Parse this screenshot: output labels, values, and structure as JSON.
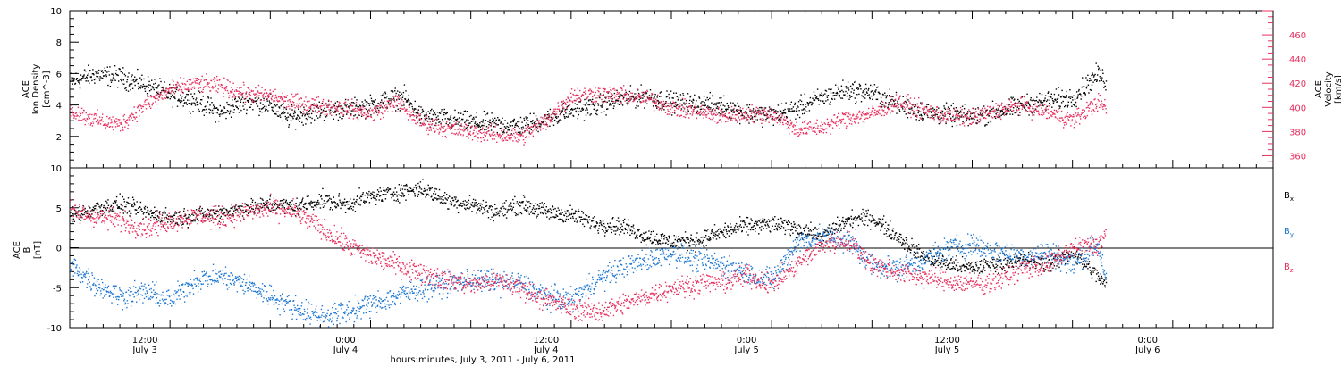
{
  "colors": {
    "black": "#000000",
    "pink": "#e8305e",
    "blue": "#1e78d2"
  },
  "chart_data": [
    {
      "type": "scatter",
      "panel": "top",
      "ylabel_left": [
        "ACE",
        "Ion Density",
        "[cm^-3]"
      ],
      "ylabel_right": [
        "ACE",
        "Velocity",
        "[km/s]"
      ],
      "ylim_left": [
        0,
        10
      ],
      "ylim_right": [
        350,
        480
      ],
      "left_tick_labels": [
        "2",
        "4",
        "6",
        "8",
        "10"
      ],
      "right_tick_labels": [
        "360",
        "380",
        "400",
        "420",
        "440",
        "460"
      ],
      "x_hours_range": [
        0,
        144
      ],
      "series": [
        {
          "name": "Ion Density",
          "color": "#000000",
          "axis": "left",
          "anchors": [
            [
              0,
              5.5
            ],
            [
              3,
              6.0
            ],
            [
              6,
              5.8
            ],
            [
              9,
              5.3
            ],
            [
              12,
              4.7
            ],
            [
              15,
              4.3
            ],
            [
              18,
              3.5
            ],
            [
              21,
              4.3
            ],
            [
              24,
              4.0
            ],
            [
              26,
              3.2
            ],
            [
              30,
              3.7
            ],
            [
              34,
              3.8
            ],
            [
              36,
              4.0
            ],
            [
              38,
              4.4
            ],
            [
              40,
              4.5
            ],
            [
              42,
              3.3
            ],
            [
              45,
              3.1
            ],
            [
              48,
              2.9
            ],
            [
              51,
              2.8
            ],
            [
              54,
              2.7
            ],
            [
              57,
              3.1
            ],
            [
              60,
              3.7
            ],
            [
              63,
              4.0
            ],
            [
              66,
              4.4
            ],
            [
              69,
              4.6
            ],
            [
              72,
              4.2
            ],
            [
              75,
              4.1
            ],
            [
              78,
              4.0
            ],
            [
              81,
              3.5
            ],
            [
              84,
              3.4
            ],
            [
              87,
              3.8
            ],
            [
              90,
              4.5
            ],
            [
              93,
              5.0
            ],
            [
              96,
              4.8
            ],
            [
              99,
              4.1
            ],
            [
              102,
              3.6
            ],
            [
              105,
              3.4
            ],
            [
              108,
              3.3
            ],
            [
              111,
              3.6
            ],
            [
              114,
              4.0
            ],
            [
              117,
              4.3
            ],
            [
              120,
              4.5
            ],
            [
              123,
              6.0
            ],
            [
              124,
              5.5
            ]
          ],
          "noise": 0.55
        },
        {
          "name": "Velocity",
          "color": "#e8305e",
          "axis": "right",
          "anchors": [
            [
              0,
              398
            ],
            [
              3,
              390
            ],
            [
              6,
              386
            ],
            [
              9,
              403
            ],
            [
              12,
              415
            ],
            [
              15,
              420
            ],
            [
              18,
              418
            ],
            [
              21,
              412
            ],
            [
              24,
              410
            ],
            [
              26,
              405
            ],
            [
              30,
              402
            ],
            [
              33,
              400
            ],
            [
              36,
              395
            ],
            [
              39,
              405
            ],
            [
              42,
              388
            ],
            [
              45,
              383
            ],
            [
              48,
              380
            ],
            [
              51,
              378
            ],
            [
              54,
              376
            ],
            [
              57,
              390
            ],
            [
              60,
              410
            ],
            [
              63,
              412
            ],
            [
              66,
              410
            ],
            [
              69,
              408
            ],
            [
              72,
              400
            ],
            [
              75,
              397
            ],
            [
              78,
              393
            ],
            [
              81,
              395
            ],
            [
              84,
              395
            ],
            [
              87,
              382
            ],
            [
              90,
              384
            ],
            [
              93,
              392
            ],
            [
              96,
              395
            ],
            [
              99,
              405
            ],
            [
              102,
              398
            ],
            [
              105,
              393
            ],
            [
              108,
              392
            ],
            [
              111,
              398
            ],
            [
              114,
              402
            ],
            [
              117,
              396
            ],
            [
              120,
              390
            ],
            [
              123,
              405
            ],
            [
              124,
              400
            ]
          ],
          "noise": 6
        }
      ]
    },
    {
      "type": "scatter",
      "panel": "bottom",
      "ylabel": [
        "ACE",
        "B",
        "[nT]"
      ],
      "ylim": [
        -10,
        10
      ],
      "tick_labels": [
        "-10",
        "-5",
        "0",
        "5",
        "10"
      ],
      "x_hours_range": [
        0,
        144
      ],
      "x_tick_labels": [
        {
          "time": "12:00",
          "date": "July 3"
        },
        {
          "time": "0:00",
          "date": "July 4"
        },
        {
          "time": "12:00",
          "date": "July 4"
        },
        {
          "time": "0:00",
          "date": "July 5"
        },
        {
          "time": "12:00",
          "date": "July 5"
        },
        {
          "time": "0:00",
          "date": "July 6"
        }
      ],
      "xlabel": "hours:minutes, July  3, 2011 - July  6, 2011",
      "series": [
        {
          "name": "Bx",
          "label_base": "B",
          "label_sub": "x",
          "color": "#000000",
          "anchors": [
            [
              0,
              4.0
            ],
            [
              3,
              5.0
            ],
            [
              6,
              5.5
            ],
            [
              9,
              4.5
            ],
            [
              12,
              3.8
            ],
            [
              15,
              4.0
            ],
            [
              18,
              4.5
            ],
            [
              21,
              5.0
            ],
            [
              24,
              5.5
            ],
            [
              27,
              5.2
            ],
            [
              30,
              6.0
            ],
            [
              33,
              5.5
            ],
            [
              36,
              6.5
            ],
            [
              39,
              7.0
            ],
            [
              42,
              7.5
            ],
            [
              45,
              6.0
            ],
            [
              48,
              5.5
            ],
            [
              51,
              4.5
            ],
            [
              54,
              5.5
            ],
            [
              57,
              4.5
            ],
            [
              60,
              4.2
            ],
            [
              63,
              3.0
            ],
            [
              66,
              2.8
            ],
            [
              69,
              1.5
            ],
            [
              72,
              0.8
            ],
            [
              75,
              1.0
            ],
            [
              78,
              2.0
            ],
            [
              81,
              2.8
            ],
            [
              84,
              3.0
            ],
            [
              87,
              2.5
            ],
            [
              90,
              1.5
            ],
            [
              93,
              3.5
            ],
            [
              96,
              3.8
            ],
            [
              99,
              1.5
            ],
            [
              102,
              -1.0
            ],
            [
              105,
              -2.0
            ],
            [
              108,
              -2.5
            ],
            [
              111,
              -1.8
            ],
            [
              114,
              -1.5
            ],
            [
              117,
              -2.0
            ],
            [
              120,
              -0.5
            ],
            [
              123,
              -3.5
            ],
            [
              124,
              -4.8
            ]
          ],
          "noise": 0.9
        },
        {
          "name": "By",
          "label_base": "B",
          "label_sub": "y",
          "color": "#1e78d2",
          "anchors": [
            [
              0,
              -2.0
            ],
            [
              3,
              -4.5
            ],
            [
              6,
              -6.0
            ],
            [
              9,
              -5.5
            ],
            [
              12,
              -6.5
            ],
            [
              15,
              -4.0
            ],
            [
              18,
              -3.5
            ],
            [
              21,
              -4.5
            ],
            [
              24,
              -6.0
            ],
            [
              27,
              -7.5
            ],
            [
              30,
              -8.5
            ],
            [
              33,
              -8.0
            ],
            [
              36,
              -7.0
            ],
            [
              39,
              -6.0
            ],
            [
              42,
              -5.0
            ],
            [
              45,
              -4.5
            ],
            [
              48,
              -4.0
            ],
            [
              51,
              -4.2
            ],
            [
              54,
              -4.5
            ],
            [
              57,
              -6.0
            ],
            [
              60,
              -6.5
            ],
            [
              63,
              -4.0
            ],
            [
              66,
              -2.5
            ],
            [
              69,
              -1.5
            ],
            [
              72,
              -0.5
            ],
            [
              75,
              -1.5
            ],
            [
              78,
              -2.0
            ],
            [
              81,
              -3.0
            ],
            [
              84,
              -4.0
            ],
            [
              87,
              0.8
            ],
            [
              90,
              1.5
            ],
            [
              93,
              1.0
            ],
            [
              96,
              -2.0
            ],
            [
              99,
              -2.5
            ],
            [
              102,
              -1.5
            ],
            [
              105,
              0.0
            ],
            [
              108,
              0.5
            ],
            [
              111,
              -0.5
            ],
            [
              114,
              -1.0
            ],
            [
              117,
              -0.5
            ],
            [
              120,
              -2.0
            ],
            [
              123,
              0.5
            ],
            [
              124,
              -4.0
            ]
          ],
          "noise": 1.2
        },
        {
          "name": "Bz",
          "label_base": "B",
          "label_sub": "z",
          "color": "#e8305e",
          "anchors": [
            [
              0,
              4.5
            ],
            [
              3,
              4.0
            ],
            [
              6,
              3.5
            ],
            [
              9,
              2.5
            ],
            [
              12,
              3.5
            ],
            [
              15,
              4.0
            ],
            [
              18,
              3.8
            ],
            [
              21,
              4.5
            ],
            [
              24,
              5.0
            ],
            [
              27,
              4.5
            ],
            [
              30,
              2.5
            ],
            [
              33,
              0.5
            ],
            [
              36,
              -1.0
            ],
            [
              39,
              -2.0
            ],
            [
              42,
              -3.0
            ],
            [
              45,
              -4.0
            ],
            [
              48,
              -4.5
            ],
            [
              51,
              -4.0
            ],
            [
              54,
              -5.0
            ],
            [
              57,
              -6.5
            ],
            [
              60,
              -7.5
            ],
            [
              63,
              -8.0
            ],
            [
              66,
              -7.0
            ],
            [
              69,
              -6.0
            ],
            [
              72,
              -5.0
            ],
            [
              75,
              -4.5
            ],
            [
              78,
              -4.2
            ],
            [
              81,
              -3.5
            ],
            [
              84,
              -4.5
            ],
            [
              87,
              -2.0
            ],
            [
              90,
              0.5
            ],
            [
              93,
              1.0
            ],
            [
              96,
              -2.0
            ],
            [
              99,
              -3.0
            ],
            [
              102,
              -3.5
            ],
            [
              105,
              -4.2
            ],
            [
              108,
              -4.5
            ],
            [
              111,
              -4.0
            ],
            [
              114,
              -2.5
            ],
            [
              117,
              -2.0
            ],
            [
              120,
              0.0
            ],
            [
              123,
              0.5
            ],
            [
              124,
              2.0
            ]
          ],
          "noise": 1.1
        }
      ]
    }
  ]
}
